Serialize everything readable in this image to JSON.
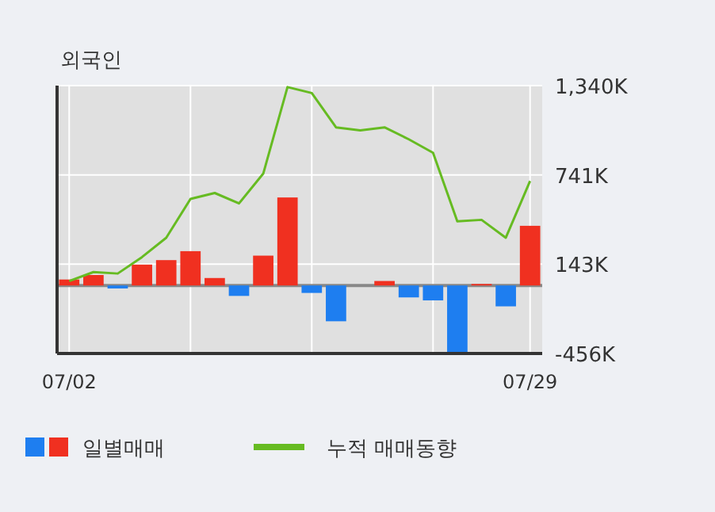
{
  "chart_data": {
    "type": "bar",
    "title": "외국인",
    "categories": [
      "07/02",
      null,
      null,
      null,
      null,
      null,
      null,
      null,
      null,
      null,
      null,
      null,
      null,
      null,
      null,
      null,
      null,
      null,
      null,
      "07/29"
    ],
    "series": [
      {
        "name": "일별매매",
        "colors": [
          "#f03020",
          "#f03020",
          "#1e7ef0",
          "#f03020",
          "#f03020",
          "#f03020",
          "#f03020",
          "#1e7ef0",
          "#f03020",
          "#f03020",
          "#1e7ef0",
          "#1e7ef0",
          "#f03020",
          "#f03020",
          "#1e7ef0",
          "#1e7ef0",
          "#1e7ef0",
          "#f03020",
          "#1e7ef0",
          "#f03020"
        ],
        "values": [
          40,
          70,
          -20,
          140,
          170,
          230,
          50,
          -70,
          200,
          590,
          -50,
          -240,
          0,
          30,
          -80,
          -100,
          -450,
          10,
          -140,
          400
        ]
      },
      {
        "name": "누적 매매동향",
        "type": "line",
        "color": "#66bb22",
        "values": [
          30,
          90,
          80,
          190,
          320,
          580,
          620,
          550,
          750,
          1330,
          1290,
          1060,
          1040,
          1060,
          980,
          890,
          430,
          440,
          320,
          700
        ]
      }
    ],
    "ylim": [
      -456,
      1340
    ],
    "yticks": [
      {
        "value": 1340,
        "label": "1,340K"
      },
      {
        "value": 741,
        "label": "741K"
      },
      {
        "value": 143,
        "label": "143K"
      },
      {
        "value": -456,
        "label": "-456K"
      }
    ],
    "ref_lines": [
      {
        "axis": "y",
        "value": 0,
        "color": "#888888"
      }
    ],
    "grid": true,
    "legend": "bottom"
  }
}
